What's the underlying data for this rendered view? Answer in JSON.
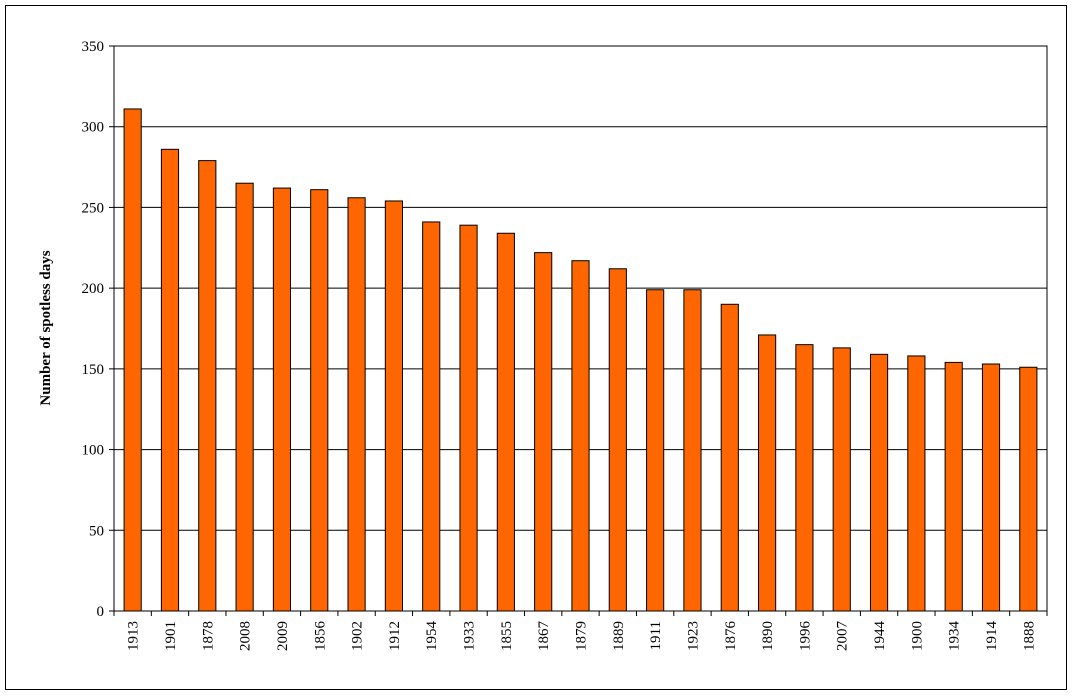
{
  "chart_data": {
    "type": "bar",
    "title": "",
    "xlabel": "",
    "ylabel": "Number of spotless days",
    "ylim": [
      0,
      350
    ],
    "yticks": [
      0,
      50,
      100,
      150,
      200,
      250,
      300,
      350
    ],
    "grid": true,
    "legend": "none",
    "bar_color": "#ff6600",
    "categories": [
      "1913",
      "1901",
      "1878",
      "2008",
      "2009",
      "1856",
      "1902",
      "1912",
      "1954",
      "1933",
      "1855",
      "1867",
      "1879",
      "1889",
      "1911",
      "1923",
      "1876",
      "1890",
      "1996",
      "2007",
      "1944",
      "1900",
      "1934",
      "1914",
      "1888"
    ],
    "values": [
      311,
      286,
      279,
      265,
      262,
      261,
      256,
      254,
      241,
      239,
      234,
      222,
      217,
      212,
      199,
      199,
      190,
      171,
      165,
      163,
      159,
      158,
      154,
      153,
      151
    ]
  }
}
